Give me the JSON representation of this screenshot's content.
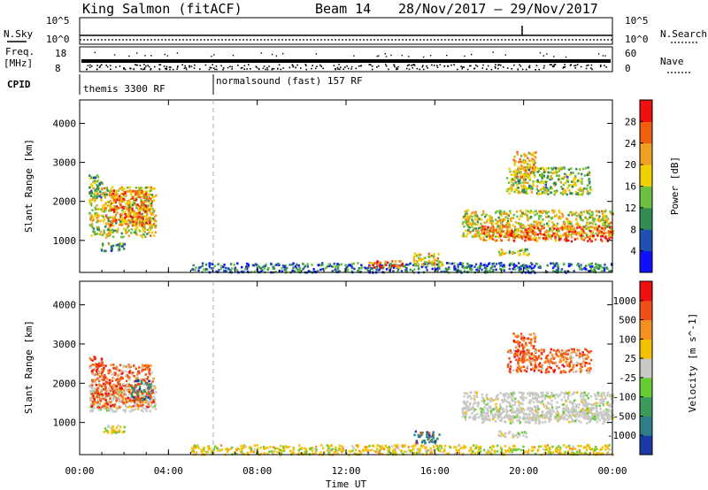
{
  "header": {
    "station": "King Salmon (fitACF)",
    "beam": "Beam 14",
    "date_range": "28/Nov/2017 – 29/Nov/2017"
  },
  "strips": {
    "nsky": {
      "label": "N.Sky",
      "right_label": "N.Search",
      "left_ticks": [
        "10^5",
        "10^0"
      ],
      "right_ticks": [
        "10^5",
        "10^0"
      ]
    },
    "freq": {
      "label_line1": "Freq.",
      "label_line2": "[MHz]",
      "right_label": "Nave",
      "left_ticks": [
        "18",
        "8"
      ],
      "right_ticks": [
        "60",
        "0"
      ]
    },
    "cpid": {
      "label": "CPID",
      "segments": [
        {
          "text": "themis 3300 RF",
          "start_hour": 0
        },
        {
          "text": "normalsound (fast) 157 RF",
          "start_hour": 6
        }
      ]
    }
  },
  "chart_data": [
    {
      "type": "heatmap",
      "name": "power",
      "ylabel": "Slant Range [km]",
      "xlabel": "Time UT",
      "x_ticks": [
        "00:00",
        "04:00",
        "08:00",
        "12:00",
        "16:00",
        "20:00",
        "00:00"
      ],
      "x_range_hours": [
        0,
        24
      ],
      "y_ticks": [
        1000,
        2000,
        3000,
        4000
      ],
      "y_range_km": [
        180,
        4600
      ],
      "colorbar": {
        "label": "Power [dB]",
        "ticks": [
          4,
          8,
          12,
          16,
          20,
          24,
          28
        ],
        "range": [
          0,
          32
        ],
        "colors": [
          "#1010ff",
          "#2050b0",
          "#308c50",
          "#6cc040",
          "#f0d000",
          "#f0a020",
          "#f06010",
          "#f01010"
        ]
      },
      "regions": [
        {
          "h0": 0.4,
          "h1": 3.4,
          "r0": 1100,
          "r1": 2400,
          "level": 0.55
        },
        {
          "h0": 0.4,
          "h1": 1.0,
          "r0": 2100,
          "r1": 2700,
          "level": 0.4
        },
        {
          "h0": 1.3,
          "h1": 3.2,
          "r0": 1400,
          "r1": 2300,
          "level": 0.75
        },
        {
          "h0": 0.9,
          "h1": 2.0,
          "r0": 750,
          "r1": 950,
          "level": 0.3
        },
        {
          "h0": 5.0,
          "h1": 24.0,
          "r0": 200,
          "r1": 450,
          "level": 0.25
        },
        {
          "h0": 13.0,
          "h1": 14.5,
          "r0": 300,
          "r1": 500,
          "level": 0.8
        },
        {
          "h0": 15.0,
          "h1": 16.3,
          "r0": 380,
          "r1": 700,
          "level": 0.6
        },
        {
          "h0": 17.2,
          "h1": 24.0,
          "r0": 1100,
          "r1": 1800,
          "level": 0.55
        },
        {
          "h0": 18.0,
          "h1": 24.0,
          "r0": 1000,
          "r1": 1400,
          "level": 0.8
        },
        {
          "h0": 19.2,
          "h1": 23.0,
          "r0": 2200,
          "r1": 2900,
          "level": 0.45
        },
        {
          "h0": 19.5,
          "h1": 20.5,
          "r0": 2600,
          "r1": 3300,
          "level": 0.65
        },
        {
          "h0": 18.8,
          "h1": 20.2,
          "r0": 650,
          "r1": 800,
          "level": 0.5
        }
      ]
    },
    {
      "type": "heatmap",
      "name": "velocity",
      "ylabel": "Slant Range [km]",
      "xlabel": "Time UT",
      "x_ticks": [
        "00:00",
        "04:00",
        "08:00",
        "12:00",
        "16:00",
        "20:00",
        "00:00"
      ],
      "x_range_hours": [
        0,
        24
      ],
      "y_ticks": [
        1000,
        2000,
        3000,
        4000
      ],
      "y_range_km": [
        180,
        4600
      ],
      "colorbar": {
        "label": "Velocity [m s^-1]",
        "ticks": [
          "1000",
          "500",
          "100",
          "25",
          "-25",
          "-100",
          "-500",
          "-1000"
        ],
        "colors": [
          "#1a3aa8",
          "#2f7e8c",
          "#3c9a5a",
          "#66cc33",
          "#c8c8c4",
          "#f5c000",
          "#f59020",
          "#f05018",
          "#f01010"
        ]
      },
      "regions": [
        {
          "h0": 0.4,
          "h1": 3.4,
          "r0": 1300,
          "r1": 2000,
          "kind": "gray"
        },
        {
          "h0": 0.5,
          "h1": 3.3,
          "r0": 1400,
          "r1": 2500,
          "kind": "warm"
        },
        {
          "h0": 0.4,
          "h1": 1.0,
          "r0": 2200,
          "r1": 2700,
          "kind": "warm"
        },
        {
          "h0": 2.3,
          "h1": 3.2,
          "r0": 1600,
          "r1": 2100,
          "kind": "cool"
        },
        {
          "h0": 0.9,
          "h1": 2.0,
          "r0": 750,
          "r1": 950,
          "kind": "yellow"
        },
        {
          "h0": 5.0,
          "h1": 24.0,
          "r0": 200,
          "r1": 450,
          "kind": "yellow"
        },
        {
          "h0": 15.0,
          "h1": 16.3,
          "r0": 500,
          "r1": 800,
          "kind": "cool"
        },
        {
          "h0": 17.2,
          "h1": 24.0,
          "r0": 1100,
          "r1": 1800,
          "kind": "gray"
        },
        {
          "h0": 18.0,
          "h1": 24.0,
          "r0": 1000,
          "r1": 1400,
          "kind": "gray"
        },
        {
          "h0": 19.2,
          "h1": 23.0,
          "r0": 2300,
          "r1": 2900,
          "kind": "warm"
        },
        {
          "h0": 19.5,
          "h1": 20.5,
          "r0": 2600,
          "r1": 3300,
          "kind": "warm"
        },
        {
          "h0": 18.8,
          "h1": 20.2,
          "r0": 650,
          "r1": 800,
          "kind": "gray"
        }
      ]
    }
  ]
}
